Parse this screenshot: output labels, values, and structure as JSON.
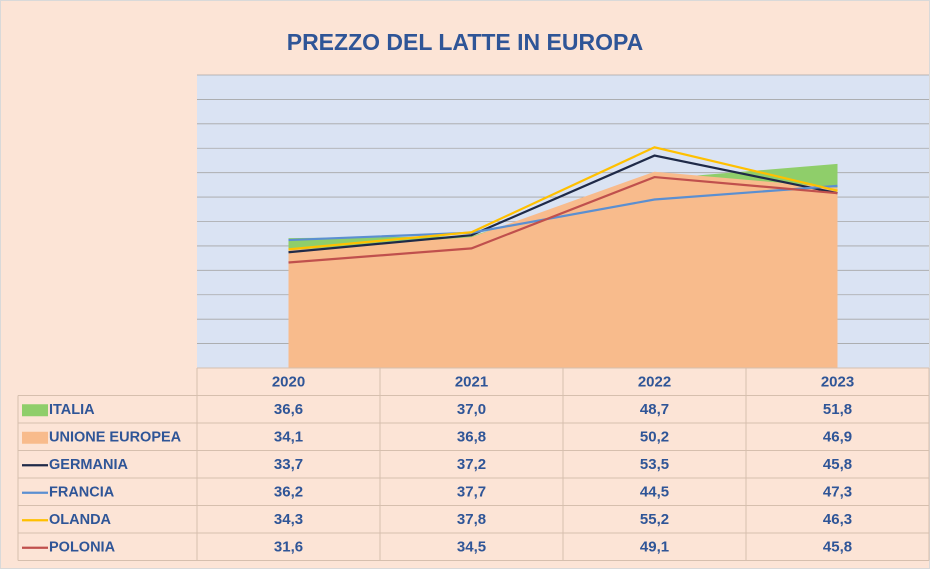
{
  "chart_data": {
    "type": "area",
    "title": "PREZZO DEL LATTE IN EUROPA",
    "categories": [
      "2020",
      "2021",
      "2022",
      "2023"
    ],
    "ylim": [
      10,
      70
    ],
    "yticks": [
      10,
      15,
      20,
      25,
      30,
      35,
      40,
      45,
      50,
      55,
      60,
      65,
      70
    ],
    "grid": true,
    "series": [
      {
        "name": "ITALIA",
        "type": "area",
        "color": "#8fce6a",
        "values": [
          36.6,
          37.0,
          48.7,
          51.8
        ],
        "value_labels": [
          "36,6",
          "37,0",
          "48,7",
          "51,8"
        ]
      },
      {
        "name": "UNIONE EUROPEA",
        "type": "area",
        "color": "#f8bb8c",
        "values": [
          34.1,
          36.8,
          50.2,
          46.9
        ],
        "value_labels": [
          "34,1",
          "36,8",
          "50,2",
          "46,9"
        ]
      },
      {
        "name": "GERMANIA",
        "type": "line",
        "color": "#1f2a48",
        "values": [
          33.7,
          37.2,
          53.5,
          45.8
        ],
        "value_labels": [
          "33,7",
          "37,2",
          "53,5",
          "45,8"
        ]
      },
      {
        "name": "FRANCIA",
        "type": "line",
        "color": "#5b8fd1",
        "values": [
          36.2,
          37.7,
          44.5,
          47.3
        ],
        "value_labels": [
          "36,2",
          "37,7",
          "44,5",
          "47,3"
        ]
      },
      {
        "name": "OLANDA",
        "type": "line",
        "color": "#ffc000",
        "values": [
          34.3,
          37.8,
          55.2,
          46.3
        ],
        "value_labels": [
          "34,3",
          "37,8",
          "55,2",
          "46,3"
        ]
      },
      {
        "name": "POLONIA",
        "type": "line",
        "color": "#c0504d",
        "values": [
          31.6,
          34.5,
          49.1,
          45.8
        ],
        "value_labels": [
          "31,6",
          "34,5",
          "49,1",
          "45,8"
        ]
      }
    ]
  }
}
